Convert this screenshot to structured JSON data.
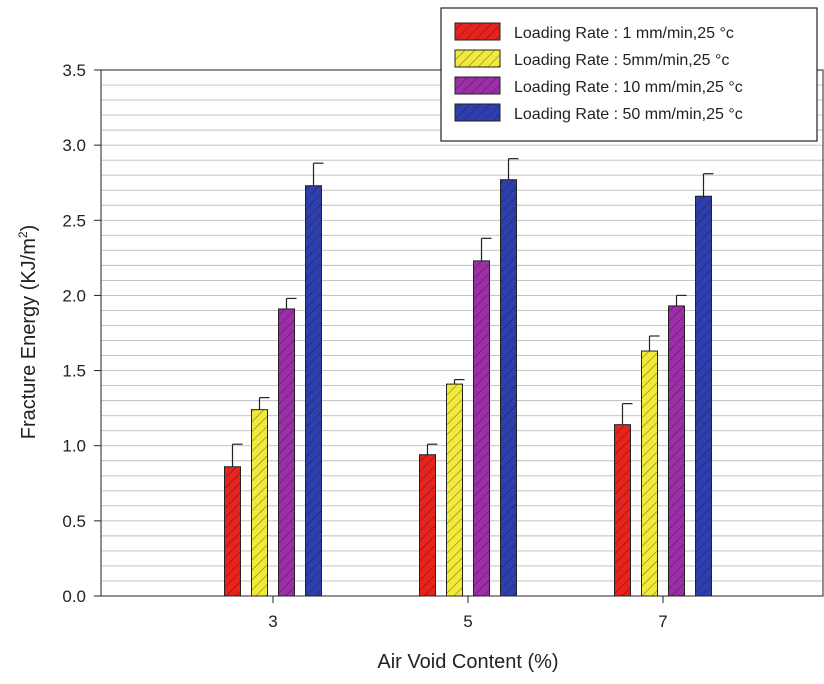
{
  "chart_data": {
    "type": "bar",
    "title": "",
    "xlabel": "Air Void Content (%)",
    "ylabel": "Fracture Energy (KJ/m",
    "ylabel_sup": "2",
    "ylabel_close": ")",
    "ylim": [
      0,
      3.5
    ],
    "yticks": [
      0.0,
      0.5,
      1.0,
      1.5,
      2.0,
      2.5,
      3.0,
      3.5
    ],
    "ytick_labels": [
      "0.0",
      "0.5",
      "1.0",
      "1.5",
      "2.0",
      "2.5",
      "3.0",
      "3.5"
    ],
    "minor_gridline_step": 0.1,
    "grid": "horizontal",
    "legend_position": "top-right",
    "categories": [
      "3",
      "5",
      "7"
    ],
    "series": [
      {
        "name": "Loading Rate : 1 mm/min,25 °c",
        "color": "#e8221c",
        "values": [
          0.86,
          0.94,
          1.14
        ],
        "errors": [
          0.15,
          0.07,
          0.14
        ]
      },
      {
        "name": "Loading Rate : 5mm/min,25 °c",
        "color": "#f2ea3a",
        "values": [
          1.24,
          1.41,
          1.63
        ],
        "errors": [
          0.08,
          0.03,
          0.1
        ]
      },
      {
        "name": "Loading Rate : 10 mm/min,25 °c",
        "color": "#9c2fa8",
        "values": [
          1.91,
          2.23,
          1.93
        ],
        "errors": [
          0.07,
          0.15,
          0.07
        ]
      },
      {
        "name": "Loading Rate : 50 mm/min,25 °c",
        "color": "#2d3fae",
        "values": [
          2.73,
          2.77,
          2.66
        ],
        "errors": [
          0.15,
          0.14,
          0.15
        ]
      }
    ]
  }
}
